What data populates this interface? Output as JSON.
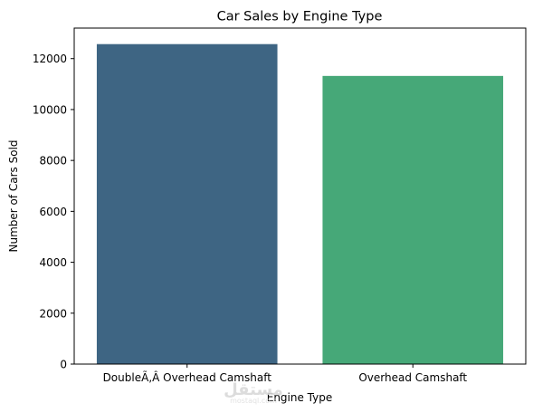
{
  "chart_data": {
    "type": "bar",
    "title": "Car Sales by Engine Type",
    "xlabel": "Engine Type",
    "ylabel": "Number of Cars Sold",
    "categories": [
      "DoubleÃ‚Â Overhead Camshaft",
      "Overhead Camshaft"
    ],
    "values": [
      12570,
      11320
    ],
    "colors": [
      "#3e6583",
      "#46a878"
    ],
    "ylim": [
      0,
      13200
    ],
    "yticks": [
      0,
      2000,
      4000,
      6000,
      8000,
      10000,
      12000
    ],
    "grid": false,
    "legend": "none"
  },
  "watermark": {
    "text": "مستقل",
    "sub": "mostaql.com"
  }
}
